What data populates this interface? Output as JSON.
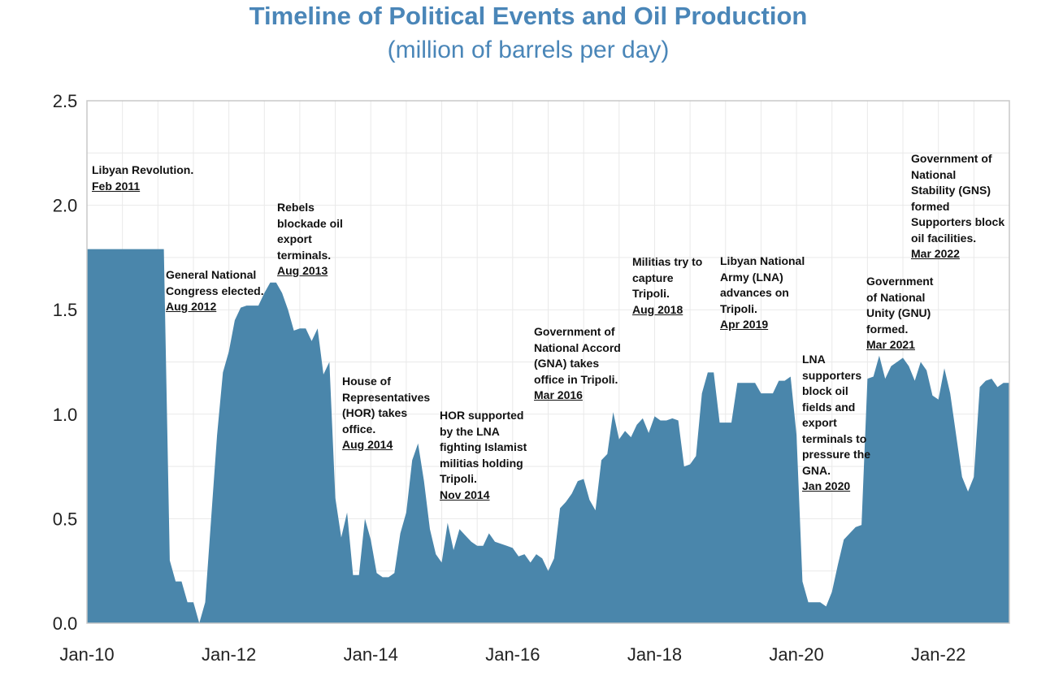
{
  "chart_data": {
    "type": "area",
    "title": "Timeline of Political Events and Oil Production",
    "subtitle": "(million of barrels per day)",
    "xlabel": "",
    "ylabel": "",
    "color": "#4a86ab",
    "grid": true,
    "ylim": [
      0,
      2.5
    ],
    "xlim": [
      "2010-01",
      "2023-01"
    ],
    "y_ticks": [
      "0.0",
      "0.5",
      "1.0",
      "1.5",
      "2.0",
      "2.5"
    ],
    "x_ticks": [
      {
        "label": "Jan-10",
        "date": "2010-01"
      },
      {
        "label": "Jan-12",
        "date": "2012-01"
      },
      {
        "label": "Jan-14",
        "date": "2014-01"
      },
      {
        "label": "Jan-16",
        "date": "2016-01"
      },
      {
        "label": "Jan-18",
        "date": "2018-01"
      },
      {
        "label": "Jan-20",
        "date": "2020-01"
      },
      {
        "label": "Jan-22",
        "date": "2022-01"
      }
    ],
    "points": [
      [
        "2010-01",
        1.79
      ],
      [
        "2011-01",
        1.79
      ],
      [
        "2011-02",
        1.79
      ],
      [
        "2011-03",
        0.3
      ],
      [
        "2011-04",
        0.2
      ],
      [
        "2011-05",
        0.2
      ],
      [
        "2011-06",
        0.1
      ],
      [
        "2011-07",
        0.1
      ],
      [
        "2011-08",
        0.0
      ],
      [
        "2011-09",
        0.1
      ],
      [
        "2011-10",
        0.5
      ],
      [
        "2011-11",
        0.9
      ],
      [
        "2011-12",
        1.2
      ],
      [
        "2012-01",
        1.3
      ],
      [
        "2012-02",
        1.45
      ],
      [
        "2012-03",
        1.51
      ],
      [
        "2012-04",
        1.52
      ],
      [
        "2012-05",
        1.52
      ],
      [
        "2012-06",
        1.52
      ],
      [
        "2012-07",
        1.58
      ],
      [
        "2012-08",
        1.63
      ],
      [
        "2012-09",
        1.63
      ],
      [
        "2012-10",
        1.58
      ],
      [
        "2012-11",
        1.5
      ],
      [
        "2012-12",
        1.4
      ],
      [
        "2013-01",
        1.41
      ],
      [
        "2013-02",
        1.41
      ],
      [
        "2013-03",
        1.35
      ],
      [
        "2013-04",
        1.41
      ],
      [
        "2013-05",
        1.19
      ],
      [
        "2013-06",
        1.25
      ],
      [
        "2013-07",
        0.6
      ],
      [
        "2013-08",
        0.41
      ],
      [
        "2013-09",
        0.53
      ],
      [
        "2013-10",
        0.23
      ],
      [
        "2013-11",
        0.23
      ],
      [
        "2013-12",
        0.5
      ],
      [
        "2014-01",
        0.4
      ],
      [
        "2014-02",
        0.24
      ],
      [
        "2014-03",
        0.22
      ],
      [
        "2014-04",
        0.22
      ],
      [
        "2014-05",
        0.24
      ],
      [
        "2014-06",
        0.43
      ],
      [
        "2014-07",
        0.53
      ],
      [
        "2014-08",
        0.78
      ],
      [
        "2014-09",
        0.86
      ],
      [
        "2014-10",
        0.68
      ],
      [
        "2014-11",
        0.45
      ],
      [
        "2014-12",
        0.33
      ],
      [
        "2015-01",
        0.29
      ],
      [
        "2015-02",
        0.48
      ],
      [
        "2015-03",
        0.35
      ],
      [
        "2015-04",
        0.45
      ],
      [
        "2015-05",
        0.42
      ],
      [
        "2015-06",
        0.39
      ],
      [
        "2015-07",
        0.37
      ],
      [
        "2015-08",
        0.37
      ],
      [
        "2015-09",
        0.43
      ],
      [
        "2015-10",
        0.39
      ],
      [
        "2015-11",
        0.38
      ],
      [
        "2015-12",
        0.37
      ],
      [
        "2016-01",
        0.36
      ],
      [
        "2016-02",
        0.32
      ],
      [
        "2016-03",
        0.33
      ],
      [
        "2016-04",
        0.29
      ],
      [
        "2016-05",
        0.33
      ],
      [
        "2016-06",
        0.31
      ],
      [
        "2016-07",
        0.25
      ],
      [
        "2016-08",
        0.31
      ],
      [
        "2016-09",
        0.55
      ],
      [
        "2016-10",
        0.58
      ],
      [
        "2016-11",
        0.62
      ],
      [
        "2016-12",
        0.68
      ],
      [
        "2017-01",
        0.69
      ],
      [
        "2017-02",
        0.59
      ],
      [
        "2017-03",
        0.54
      ],
      [
        "2017-04",
        0.78
      ],
      [
        "2017-05",
        0.81
      ],
      [
        "2017-06",
        1.01
      ],
      [
        "2017-07",
        0.88
      ],
      [
        "2017-08",
        0.92
      ],
      [
        "2017-09",
        0.89
      ],
      [
        "2017-10",
        0.95
      ],
      [
        "2017-11",
        0.98
      ],
      [
        "2017-12",
        0.91
      ],
      [
        "2018-01",
        0.99
      ],
      [
        "2018-02",
        0.97
      ],
      [
        "2018-03",
        0.97
      ],
      [
        "2018-04",
        0.98
      ],
      [
        "2018-05",
        0.97
      ],
      [
        "2018-06",
        0.75
      ],
      [
        "2018-07",
        0.76
      ],
      [
        "2018-08",
        0.8
      ],
      [
        "2018-09",
        1.1
      ],
      [
        "2018-10",
        1.2
      ],
      [
        "2018-11",
        1.2
      ],
      [
        "2018-12",
        0.96
      ],
      [
        "2019-01",
        0.96
      ],
      [
        "2019-02",
        0.96
      ],
      [
        "2019-03",
        1.15
      ],
      [
        "2019-04",
        1.15
      ],
      [
        "2019-05",
        1.15
      ],
      [
        "2019-06",
        1.15
      ],
      [
        "2019-07",
        1.1
      ],
      [
        "2019-08",
        1.1
      ],
      [
        "2019-09",
        1.1
      ],
      [
        "2019-10",
        1.16
      ],
      [
        "2019-11",
        1.16
      ],
      [
        "2019-12",
        1.18
      ],
      [
        "2020-01",
        0.9
      ],
      [
        "2020-02",
        0.2
      ],
      [
        "2020-03",
        0.1
      ],
      [
        "2020-04",
        0.1
      ],
      [
        "2020-05",
        0.1
      ],
      [
        "2020-06",
        0.08
      ],
      [
        "2020-07",
        0.15
      ],
      [
        "2020-08",
        0.28
      ],
      [
        "2020-09",
        0.4
      ],
      [
        "2020-10",
        0.43
      ],
      [
        "2020-11",
        0.46
      ],
      [
        "2020-12",
        0.47
      ],
      [
        "2021-01",
        1.17
      ],
      [
        "2021-02",
        1.18
      ],
      [
        "2021-03",
        1.28
      ],
      [
        "2021-04",
        1.17
      ],
      [
        "2021-05",
        1.23
      ],
      [
        "2021-06",
        1.25
      ],
      [
        "2021-07",
        1.27
      ],
      [
        "2021-08",
        1.23
      ],
      [
        "2021-09",
        1.16
      ],
      [
        "2021-10",
        1.25
      ],
      [
        "2021-11",
        1.21
      ],
      [
        "2021-12",
        1.09
      ],
      [
        "2022-01",
        1.07
      ],
      [
        "2022-02",
        1.22
      ],
      [
        "2022-03",
        1.1
      ],
      [
        "2022-04",
        0.9
      ],
      [
        "2022-05",
        0.7
      ],
      [
        "2022-06",
        0.63
      ],
      [
        "2022-07",
        0.7
      ],
      [
        "2022-08",
        1.13
      ],
      [
        "2022-09",
        1.16
      ],
      [
        "2022-10",
        1.17
      ],
      [
        "2022-11",
        1.13
      ],
      [
        "2022-12",
        1.15
      ]
    ],
    "annotations": [
      {
        "text": [
          "Libyan Revolution."
        ],
        "date": "Feb 2011"
      },
      {
        "text": [
          "General National",
          "Congress elected."
        ],
        "date": "Aug 2012"
      },
      {
        "text": [
          "Rebels",
          "blockade oil",
          "export",
          "terminals."
        ],
        "date": "Aug 2013"
      },
      {
        "text": [
          "House of",
          "Representatives",
          "(HOR) takes",
          "office."
        ],
        "date": "Aug 2014"
      },
      {
        "text": [
          "HOR supported",
          "by the LNA",
          "fighting Islamist",
          "militias holding",
          "Tripoli."
        ],
        "date": "Nov 2014"
      },
      {
        "text": [
          "Government of",
          "National Accord",
          "(GNA) takes",
          "office in Tripoli."
        ],
        "date": "Mar 2016"
      },
      {
        "text": [
          "Militias try to",
          "capture",
          "Tripoli."
        ],
        "date": "Aug 2018"
      },
      {
        "text": [
          "Libyan National",
          "Army (LNA)",
          "advances on",
          "Tripoli."
        ],
        "date": "Apr 2019"
      },
      {
        "text": [
          "LNA",
          "supporters",
          "block oil",
          "fields and",
          "export",
          "terminals to",
          "pressure the",
          "GNA."
        ],
        "date": "Jan 2020"
      },
      {
        "text": [
          "Government",
          "of National",
          "Unity (GNU)",
          "formed."
        ],
        "date": "Mar 2021"
      },
      {
        "text": [
          "Government of",
          "National",
          "Stability (GNS)",
          "formed",
          "Supporters block",
          "oil facilities."
        ],
        "date": "Mar 2022"
      }
    ]
  }
}
